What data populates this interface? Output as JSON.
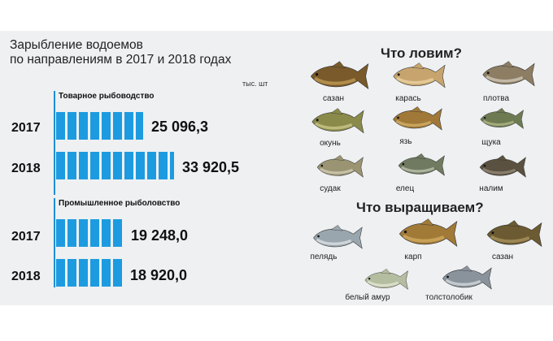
{
  "chart": {
    "title_line1": "Зарыбление водоемов",
    "title_line2": "по направлениям в 2017 и 2018 годах",
    "unit": "тыс. шт"
  },
  "chart_data": {
    "type": "bar",
    "title": "Зарыбление водоемов по направлениям в 2017 и 2018 годах",
    "ylabel": "тыс. шт",
    "categories": [
      "2017",
      "2018"
    ],
    "series": [
      {
        "name": "Товарное рыбоводство",
        "values": [
          25096.3,
          33920.5
        ],
        "labels": [
          "25 096,3",
          "33 920,5"
        ]
      },
      {
        "name": "Промышленное рыболовство",
        "values": [
          19248.0,
          18920.0
        ],
        "labels": [
          "19 248,0",
          "18 920,0"
        ]
      }
    ],
    "colors": {
      "bar": "#1d9be0"
    }
  },
  "catch": {
    "heading": "Что ловим?",
    "fish": [
      "сазан",
      "карась",
      "плотва",
      "окунь",
      "язь",
      "щука",
      "судак",
      "елец",
      "налим"
    ]
  },
  "farm": {
    "heading": "Что выращиваем?",
    "fish": [
      "пелядь",
      "карп",
      "сазан",
      "белый амур",
      "толстолобик"
    ]
  }
}
